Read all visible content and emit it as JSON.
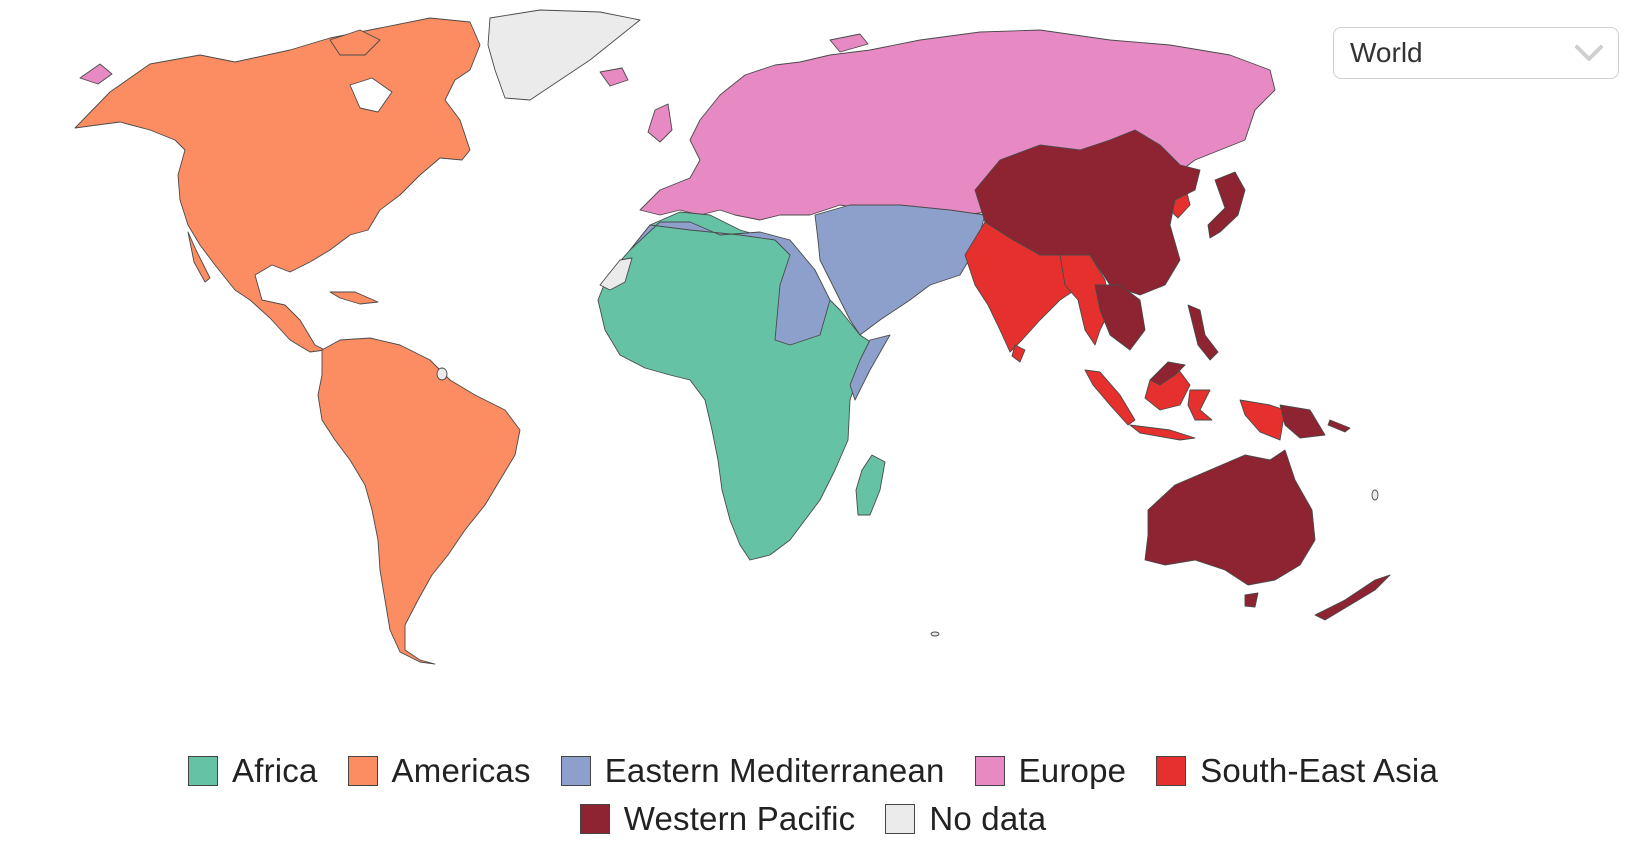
{
  "dropdown": {
    "value": "World",
    "icon": "chevron-down-icon"
  },
  "regions": [
    {
      "key": "africa",
      "label": "Africa",
      "color": "#66c2a5"
    },
    {
      "key": "americas",
      "label": "Americas",
      "color": "#fc8d62"
    },
    {
      "key": "emr",
      "label": "Eastern Mediterranean",
      "color": "#8da0cb"
    },
    {
      "key": "europe",
      "label": "Europe",
      "color": "#e78ac3"
    },
    {
      "key": "sea",
      "label": "South-East Asia",
      "color": "#e5302d"
    },
    {
      "key": "wpr",
      "label": "Western Pacific",
      "color": "#8e2331"
    },
    {
      "key": "nodata",
      "label": "No data",
      "color": "#ebebeb"
    }
  ]
}
